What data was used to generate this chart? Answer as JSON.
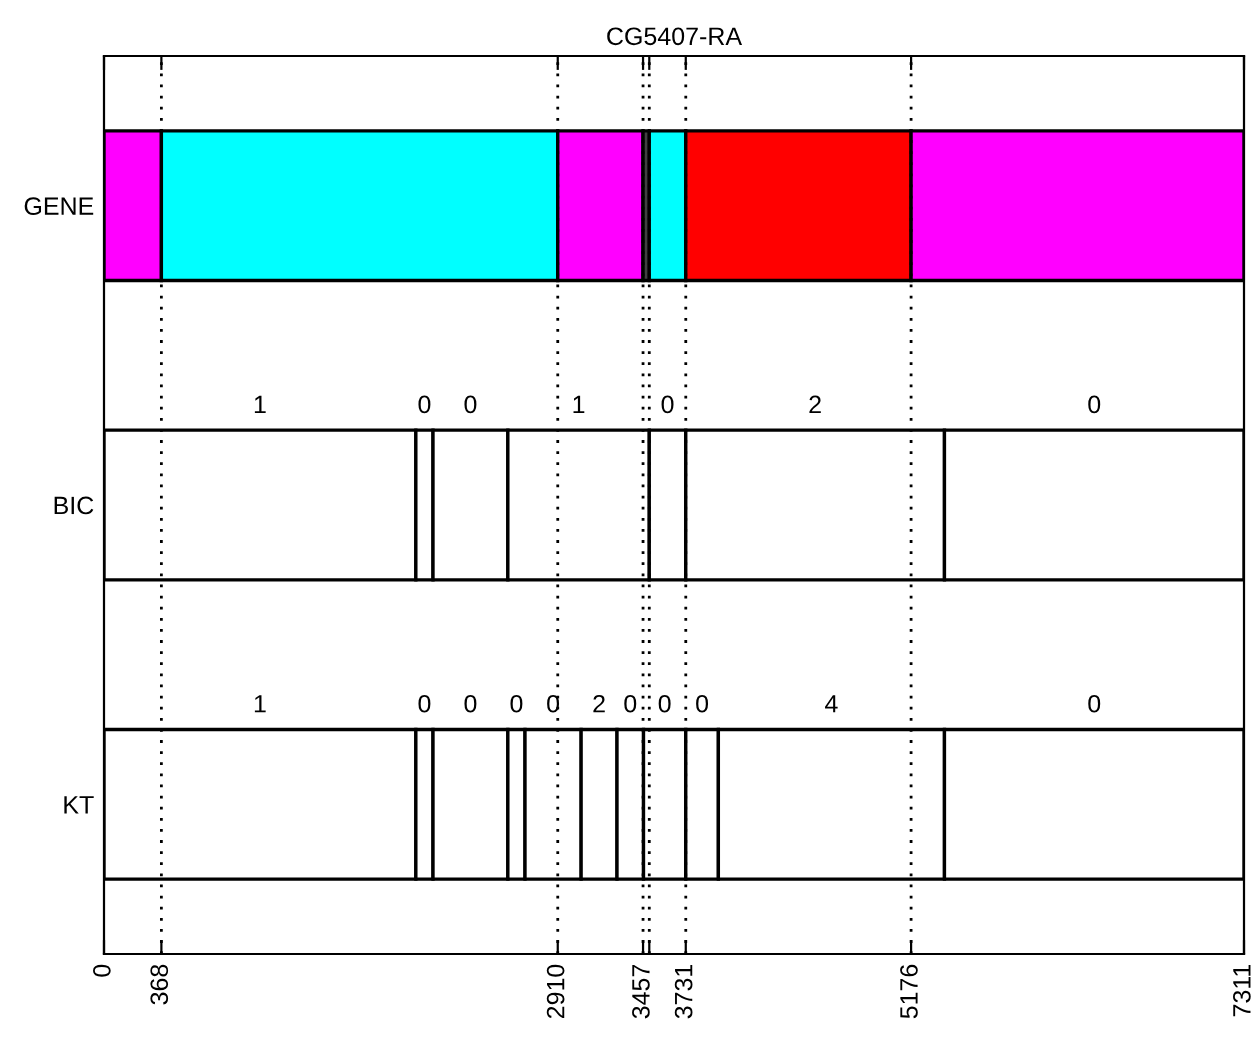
{
  "chart_data": {
    "type": "bar",
    "orientation": "horizontal",
    "stacked": true,
    "title": "CG5407-RA",
    "categories": [
      "GENE",
      "BIC",
      "KT"
    ],
    "series": [
      {
        "colors": [
          "#ff00ff",
          "#ffffff",
          "#ffffff"
        ],
        "values": [
          368,
          2000,
          2000
        ]
      },
      {
        "colors": [
          "#00ffff",
          "#ffffff",
          "#ffffff"
        ],
        "values": [
          2542,
          110,
          110
        ]
      },
      {
        "colors": [
          "#ff00ff",
          "#ffffff",
          "#ffffff"
        ],
        "values": [
          547,
          480,
          480
        ]
      },
      {
        "colors": [
          "#404040",
          "#ffffff",
          "#ffffff"
        ],
        "values": [
          40,
          907,
          110
        ]
      },
      {
        "colors": [
          "#00ffff",
          "#ffffff",
          "#ffffff"
        ],
        "values": [
          234,
          234,
          360
        ]
      },
      {
        "colors": [
          "#ff0000",
          "#ffffff",
          "#ffffff"
        ],
        "values": [
          1445,
          1659,
          230
        ]
      },
      {
        "colors": [
          "#ff00ff",
          "#ffffff",
          "#ffffff"
        ],
        "values": [
          2135,
          1921,
          170
        ]
      },
      {
        "colors": [
          null,
          null,
          "#ffffff"
        ],
        "values": [
          null,
          null,
          271
        ]
      },
      {
        "colors": [
          null,
          null,
          "#ffffff"
        ],
        "values": [
          null,
          null,
          209
        ]
      },
      {
        "colors": [
          null,
          null,
          "#ffffff"
        ],
        "values": [
          null,
          null,
          1450
        ]
      },
      {
        "colors": [
          null,
          null,
          "#ffffff"
        ],
        "values": [
          null,
          null,
          1921
        ]
      }
    ],
    "annotations": [
      "1",
      "0",
      "0",
      "1",
      "0",
      "2",
      "0",
      "1",
      "0",
      "0",
      "0",
      "0",
      "2",
      "0",
      "0",
      "0",
      "4",
      "0"
    ],
    "xlim": [
      0,
      7311
    ],
    "xticks": [
      0,
      368,
      2910,
      3457,
      {
        "value": 3497,
        "label": null
      },
      3731,
      5176,
      7311
    ],
    "ref_lines": [
      {
        "axis": "x",
        "value": 368,
        "line_style": "dotted"
      },
      {
        "axis": "x",
        "value": 2910,
        "line_style": "dotted"
      },
      {
        "axis": "x",
        "value": 3457,
        "line_style": "dotted"
      },
      {
        "axis": "x",
        "value": 3497,
        "line_style": "dotted"
      },
      {
        "axis": "x",
        "value": 3731,
        "line_style": "dotted"
      },
      {
        "axis": "x",
        "value": 5176,
        "line_style": "dotted"
      }
    ],
    "grid": false,
    "legend": false
  }
}
